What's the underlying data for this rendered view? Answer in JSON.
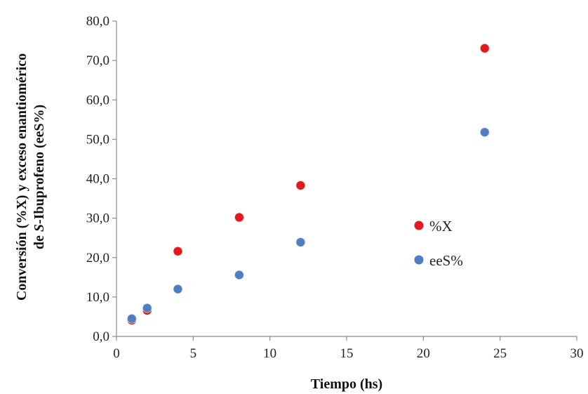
{
  "chart_data": {
    "type": "scatter",
    "xlabel": "Tiempo (hs)",
    "ylabel_lines": [
      "Conversión (%X) y exceso enantiomérico",
      "de S-Ibuprofeno (eeS%)"
    ],
    "xlim": [
      0,
      30
    ],
    "ylim": [
      0,
      80
    ],
    "x_ticks": [
      "0",
      "5",
      "10",
      "15",
      "20",
      "25",
      "30"
    ],
    "y_ticks": [
      "0,0",
      "10,0",
      "20,0",
      "30,0",
      "40,0",
      "50,0",
      "60,0",
      "70,0",
      "80,0"
    ],
    "grid": false,
    "legend_position": "right",
    "series": [
      {
        "name": "%X",
        "color": "#e31a1c",
        "points": [
          [
            1,
            4.1
          ],
          [
            2,
            6.6
          ],
          [
            4,
            21.6
          ],
          [
            8,
            30.2
          ],
          [
            12,
            38.3
          ],
          [
            24,
            73.1
          ]
        ]
      },
      {
        "name": "eeS%",
        "color": "#4f7fc2",
        "points": [
          [
            1,
            4.5
          ],
          [
            2,
            7.2
          ],
          [
            4,
            12.0
          ],
          [
            8,
            15.6
          ],
          [
            12,
            23.9
          ],
          [
            24,
            51.8
          ]
        ]
      }
    ]
  }
}
